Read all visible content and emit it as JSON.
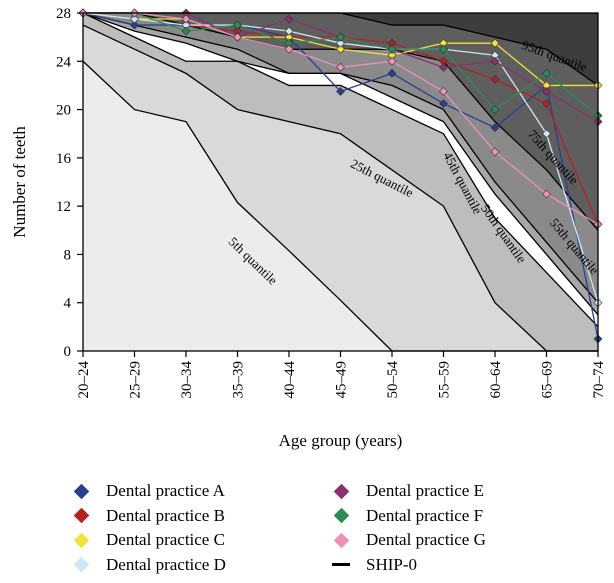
{
  "chart_data": {
    "type": "line",
    "title": "",
    "xlabel": "Age group (years)",
    "ylabel": "Number of teeth",
    "ylim": [
      0,
      28
    ],
    "yticks": [
      0,
      4,
      8,
      12,
      16,
      20,
      24,
      28
    ],
    "categories": [
      "20–24",
      "25–29",
      "30–34",
      "35–39",
      "40–44",
      "45–49",
      "50–54",
      "55–59",
      "60–64",
      "65–69",
      "70–74"
    ],
    "quantiles": [
      {
        "name": "5th quantile",
        "values": [
          24,
          20,
          19,
          12.3,
          8.3,
          4.2,
          0,
          0,
          0,
          0,
          0
        ],
        "fill": "#ececec"
      },
      {
        "name": "25th quantile",
        "values": [
          27,
          25,
          23,
          20,
          19,
          18,
          15,
          12,
          4,
          0,
          0
        ],
        "fill": "#d9d9d9"
      },
      {
        "name": "45th quantile",
        "values": [
          28,
          26,
          24,
          24,
          22,
          22,
          20,
          18,
          11,
          6.5,
          2
        ],
        "fill": "#bdbdbd"
      },
      {
        "name": "50th quantile",
        "values": [
          28,
          26.5,
          25.5,
          24,
          23,
          23,
          21,
          19,
          13,
          8,
          3
        ],
        "fill": "#ffffff"
      },
      {
        "name": "55th quantile",
        "values": [
          28,
          27,
          26,
          25,
          23,
          23,
          22,
          20,
          14,
          9,
          4
        ],
        "fill": "#a7a7a7"
      },
      {
        "name": "75th quantile",
        "values": [
          28,
          28,
          27,
          26,
          25,
          25,
          25,
          24,
          19,
          15,
          10
        ],
        "fill": "#8a8a8a"
      },
      {
        "name": "95th quantile",
        "values": [
          28,
          28,
          28,
          28,
          28,
          28,
          27,
          27,
          26,
          25,
          22
        ],
        "fill": "#5e5e5e"
      }
    ],
    "top_fill": "#3d3d3d",
    "series": [
      {
        "name": "Dental practice A",
        "color": "#2b3f8f",
        "values": [
          28,
          27,
          27,
          27,
          26,
          21.5,
          23,
          20.5,
          18.5,
          22,
          1
        ]
      },
      {
        "name": "Dental practice B",
        "color": "#b22222",
        "values": [
          28,
          27.5,
          27,
          26.5,
          26,
          26,
          25.5,
          24,
          22.5,
          20.5,
          10.5
        ]
      },
      {
        "name": "Dental practice C",
        "color": "#f2e23a",
        "values": [
          28,
          27.5,
          27.5,
          26,
          26,
          25,
          24.5,
          25.5,
          25.5,
          22,
          22
        ]
      },
      {
        "name": "Dental practice D",
        "color": "#cfe7f2",
        "values": [
          28,
          27.5,
          27,
          27,
          26.5,
          25.5,
          25,
          25,
          24.5,
          18,
          4
        ]
      },
      {
        "name": "Dental practice E",
        "color": "#8b2f6e",
        "values": [
          28,
          28,
          28,
          26,
          27.5,
          26,
          25,
          23.5,
          24,
          21.5,
          19
        ]
      },
      {
        "name": "Dental practice F",
        "color": "#2e8b57",
        "values": [
          28,
          28,
          26.5,
          27,
          25.5,
          26,
          25,
          25,
          20,
          23,
          19.5
        ]
      },
      {
        "name": "Dental practice G",
        "color": "#f08fb8",
        "values": [
          28,
          28,
          27.5,
          26,
          25,
          23.5,
          24,
          21.5,
          16.5,
          13,
          10.5
        ]
      }
    ],
    "legend_extra": "SHIP-0"
  }
}
